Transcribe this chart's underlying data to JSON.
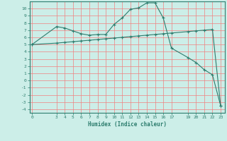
{
  "xlabel": "Humidex (Indice chaleur)",
  "background_color": "#cceee8",
  "line_color": "#2d7d6e",
  "grid_color": "#f08080",
  "x_ticks": [
    0,
    3,
    4,
    5,
    6,
    7,
    8,
    9,
    10,
    11,
    12,
    13,
    14,
    15,
    16,
    17,
    19,
    20,
    21,
    22,
    23
  ],
  "ylim": [
    -4.5,
    11.0
  ],
  "xlim": [
    -0.3,
    23.5
  ],
  "series1_x": [
    0,
    3,
    4,
    5,
    6,
    7,
    8,
    9,
    10,
    11,
    12,
    13,
    14,
    15,
    16,
    17,
    19,
    20,
    21,
    22,
    23
  ],
  "series1_y": [
    5.0,
    7.5,
    7.3,
    6.9,
    6.5,
    6.3,
    6.4,
    6.4,
    7.8,
    8.7,
    9.9,
    10.1,
    10.8,
    10.8,
    8.7,
    4.5,
    3.2,
    2.5,
    1.5,
    0.8,
    -3.5
  ],
  "series2_x": [
    0,
    3,
    4,
    5,
    6,
    7,
    8,
    9,
    10,
    11,
    12,
    13,
    14,
    15,
    16,
    17,
    19,
    20,
    21,
    22,
    23
  ],
  "series2_y": [
    5.0,
    5.2,
    5.3,
    5.4,
    5.5,
    5.6,
    5.7,
    5.8,
    5.9,
    6.0,
    6.1,
    6.2,
    6.3,
    6.4,
    6.5,
    6.6,
    6.8,
    6.9,
    7.0,
    7.1,
    -3.5
  ],
  "yticks": [
    10,
    9,
    8,
    7,
    6,
    5,
    4,
    3,
    2,
    1,
    0,
    -1,
    -2,
    -3,
    -4
  ],
  "ytick_labels": [
    "10",
    "9",
    "8",
    "7",
    "6",
    "5",
    "4",
    "3",
    "2",
    "1",
    "0",
    "-1",
    "-2",
    "-3",
    "-4"
  ]
}
